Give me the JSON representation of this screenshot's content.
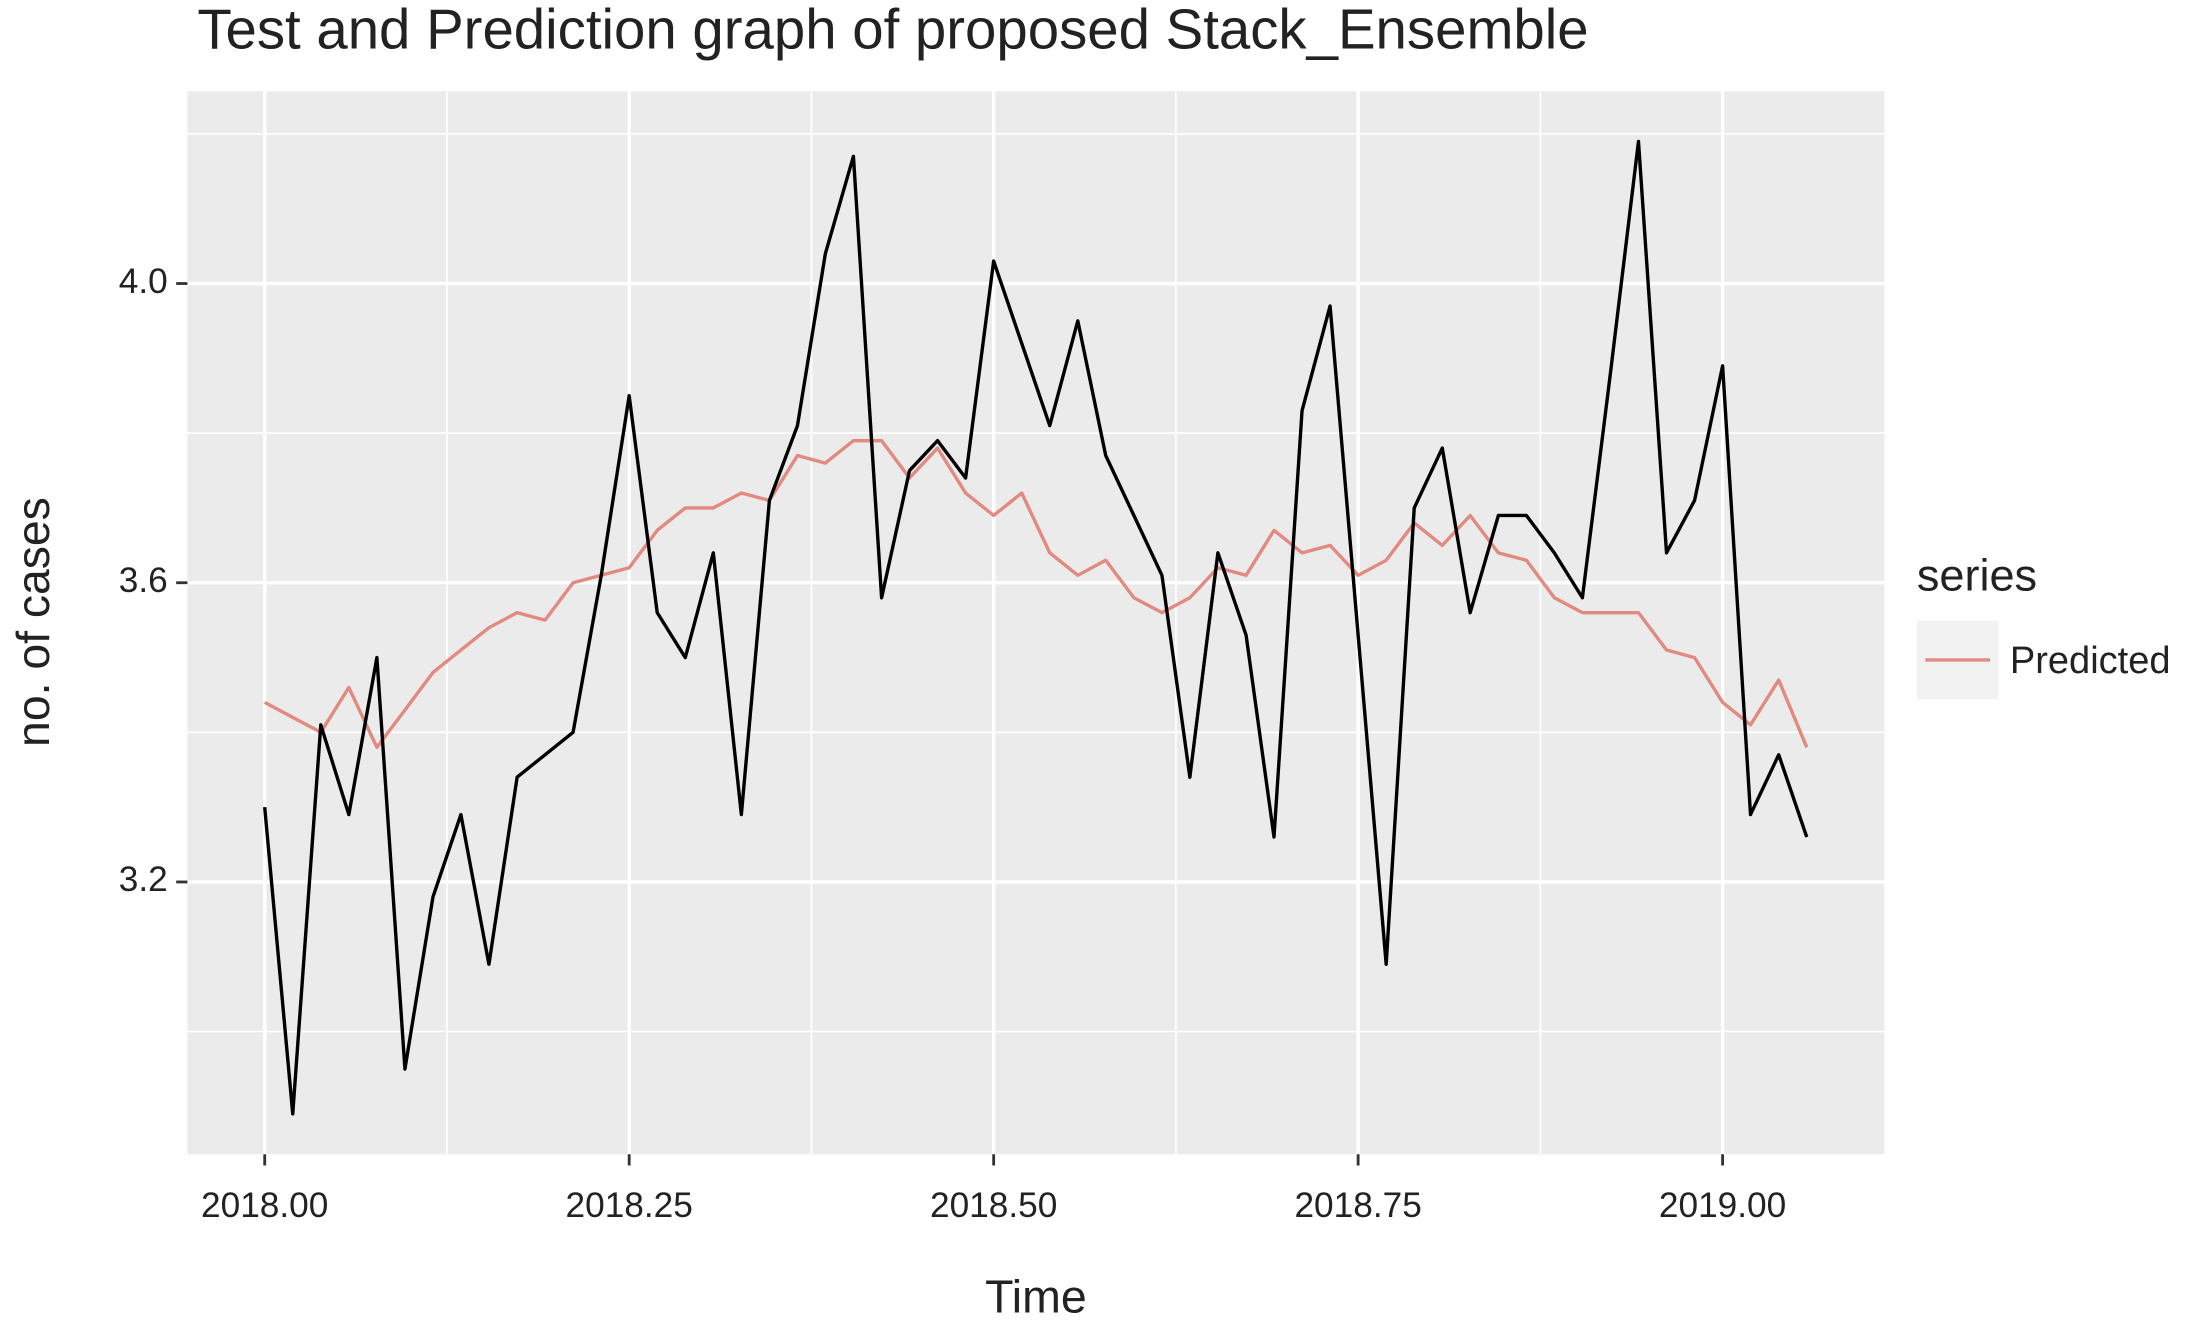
{
  "chart_data": {
    "type": "line",
    "title": "Test and Prediction graph of proposed Stack_Ensemble",
    "xlabel": "Time",
    "ylabel": "no. of cases",
    "legend_title": "series",
    "legend": "right",
    "grid": true,
    "x": [
      2018,
      2018.0192,
      2018.0385,
      2018.0577,
      2018.0769,
      2018.0962,
      2018.1154,
      2018.1346,
      2018.1538,
      2018.1731,
      2018.1923,
      2018.2115,
      2018.2308,
      2018.25,
      2018.2692,
      2018.2885,
      2018.3077,
      2018.3269,
      2018.3462,
      2018.3654,
      2018.3846,
      2018.4038,
      2018.4231,
      2018.4423,
      2018.4615,
      2018.4808,
      2018.5,
      2018.5192,
      2018.5385,
      2018.5577,
      2018.5769,
      2018.5962,
      2018.6154,
      2018.6346,
      2018.6538,
      2018.6731,
      2018.6923,
      2018.7115,
      2018.7308,
      2018.75,
      2018.7692,
      2018.7885,
      2018.8077,
      2018.8269,
      2018.8462,
      2018.8654,
      2018.8846,
      2018.9038,
      2018.9231,
      2018.9423,
      2018.9615,
      2018.9808,
      2019,
      2019.0192,
      2019.0385,
      2019.0577
    ],
    "series": [
      {
        "color": "#000000",
        "values": [
          3.3,
          2.89,
          3.41,
          3.29,
          3.5,
          2.95,
          3.18,
          3.29,
          3.09,
          3.34,
          3.37,
          3.4,
          3.61,
          3.85,
          3.56,
          3.5,
          3.64,
          3.29,
          3.71,
          3.81,
          4.04,
          4.17,
          3.58,
          3.75,
          3.79,
          3.74,
          4.03,
          3.92,
          3.81,
          3.95,
          3.77,
          3.69,
          3.61,
          3.34,
          3.64,
          3.53,
          3.26,
          3.83,
          3.97,
          3.53,
          3.09,
          3.7,
          3.78,
          3.56,
          3.69,
          3.69,
          3.64,
          3.58,
          3.88,
          4.19,
          3.64,
          3.71,
          3.89,
          3.29,
          3.37,
          3.26
        ]
      },
      {
        "name": "Predicted",
        "color": "#e08a80",
        "values": [
          3.44,
          3.42,
          3.4,
          3.46,
          3.38,
          3.43,
          3.48,
          3.51,
          3.54,
          3.56,
          3.55,
          3.6,
          3.61,
          3.62,
          3.67,
          3.7,
          3.7,
          3.72,
          3.71,
          3.77,
          3.76,
          3.79,
          3.79,
          3.74,
          3.78,
          3.72,
          3.69,
          3.72,
          3.64,
          3.61,
          3.63,
          3.58,
          3.56,
          3.58,
          3.62,
          3.61,
          3.67,
          3.64,
          3.65,
          3.61,
          3.63,
          3.68,
          3.65,
          3.69,
          3.64,
          3.63,
          3.58,
          3.56,
          3.56,
          3.56,
          3.51,
          3.5,
          3.44,
          3.41,
          3.47,
          3.38
        ]
      }
    ],
    "xlim": [
      2017.947,
      2019.111
    ],
    "ylim": [
      2.836,
      4.257
    ],
    "xticks": [
      {
        "value": 2018,
        "label": "2018.00"
      },
      {
        "value": 2018.25,
        "label": "2018.25"
      },
      {
        "value": 2018.5,
        "label": "2018.50"
      },
      {
        "value": 2018.75,
        "label": "2018.75"
      },
      {
        "value": 2019,
        "label": "2019.00"
      }
    ],
    "yticks": [
      3.2,
      3.6,
      {
        "value": 4,
        "label": "4.0"
      }
    ],
    "x_minor_ticks": [
      2018.125,
      2018.375,
      2018.625,
      2018.875
    ],
    "y_minor_ticks": [
      3.0,
      3.4,
      3.8,
      4.2
    ]
  }
}
